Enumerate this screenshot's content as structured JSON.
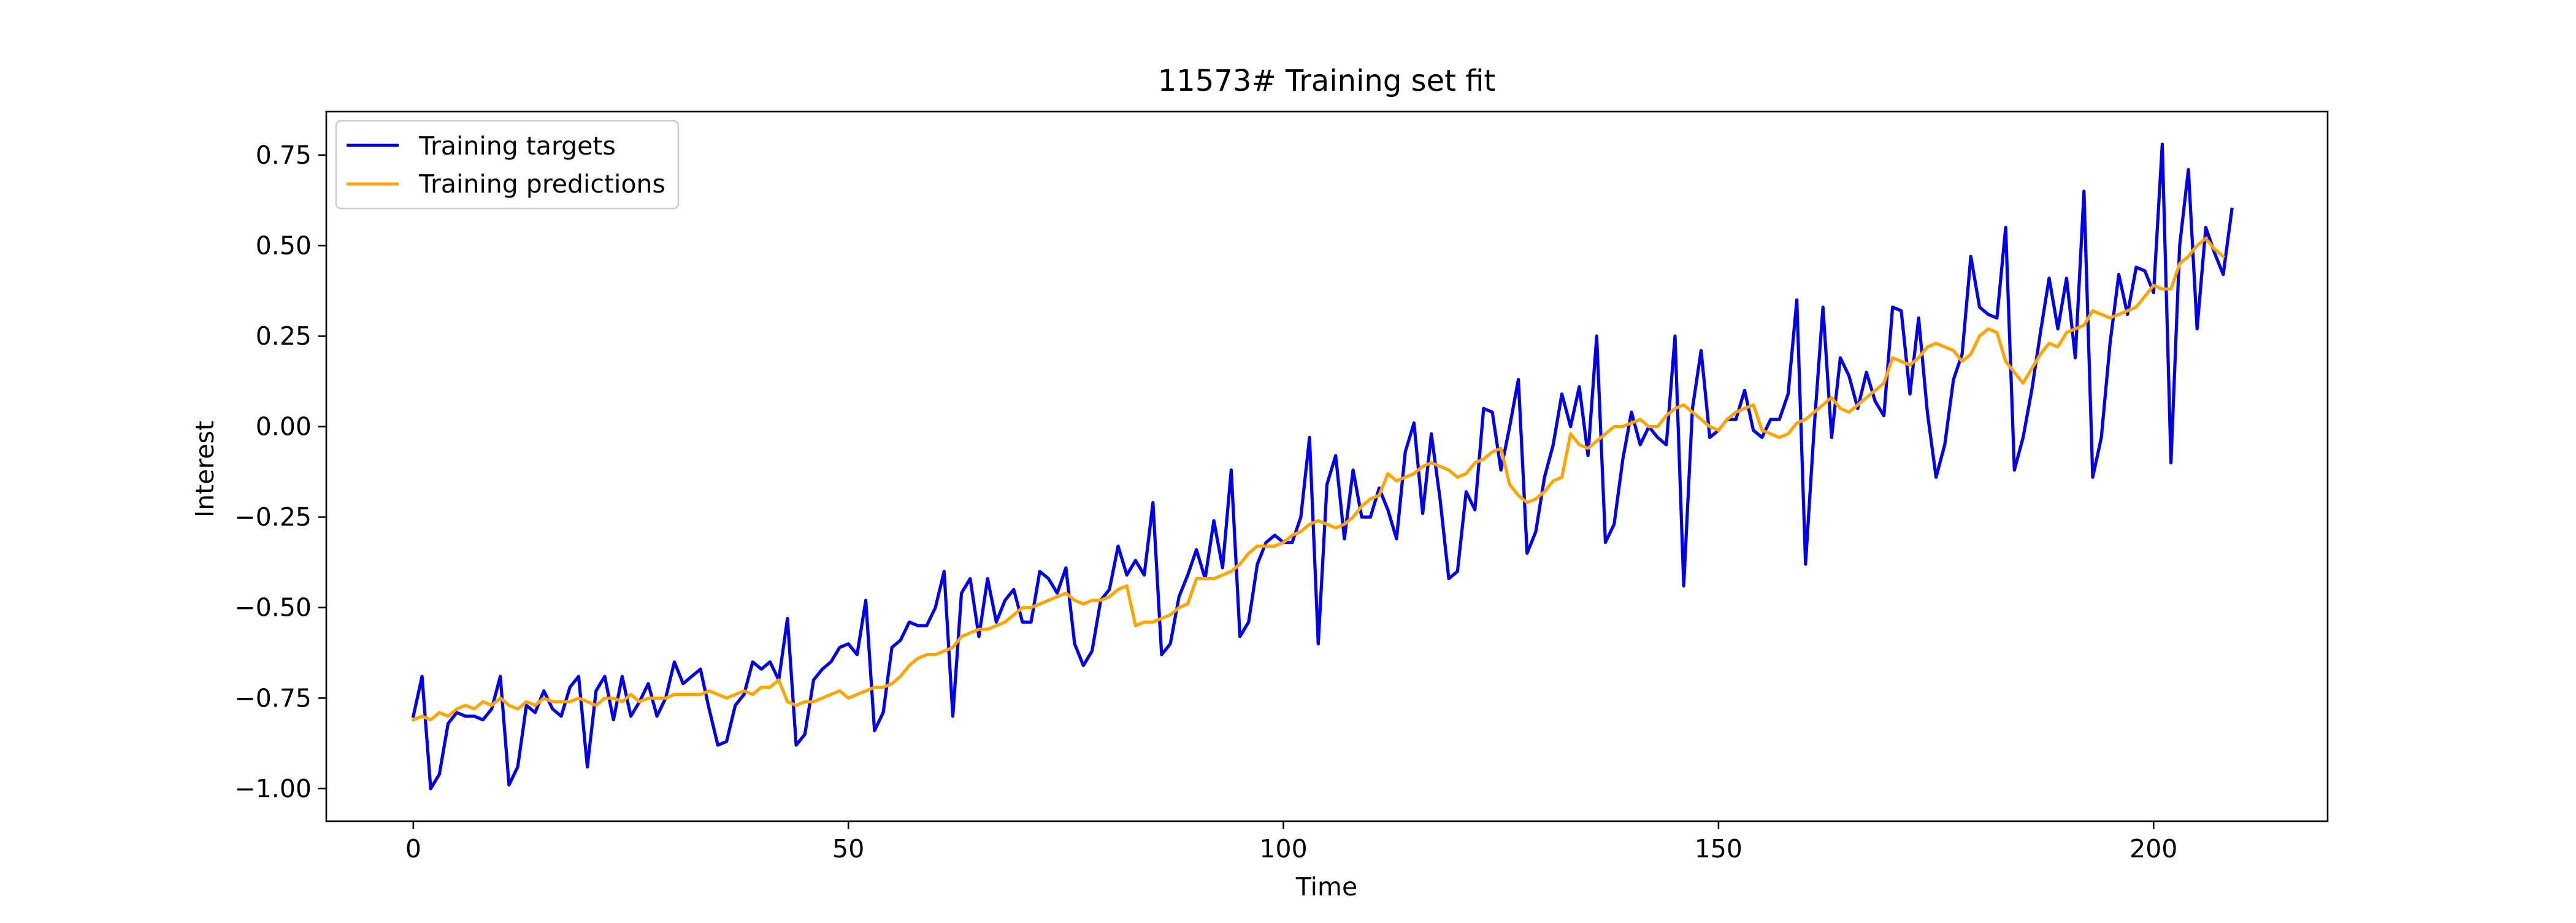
{
  "chart_data": {
    "type": "line",
    "title": "11573# Training set fit",
    "xlabel": "Time",
    "ylabel": "Interest",
    "xlim": [
      -10,
      220
    ],
    "ylim": [
      -1.09,
      0.87
    ],
    "xticks": [
      0,
      50,
      100,
      150,
      200
    ],
    "yticks": [
      -1.0,
      -0.75,
      -0.5,
      -0.25,
      0.0,
      0.25,
      0.5,
      0.75
    ],
    "ytick_labels": [
      "−1.00",
      "−0.75",
      "−0.50",
      "−0.25",
      "0.00",
      "0.25",
      "0.50",
      "0.75"
    ],
    "grid": false,
    "legend_position": "top-left",
    "x_start": 0,
    "x_step": 1,
    "series": [
      {
        "name": "Training targets",
        "color": "#0000ee",
        "values": [
          -0.8,
          -0.69,
          -1.0,
          -0.96,
          -0.82,
          -0.79,
          -0.8,
          -0.8,
          -0.81,
          -0.78,
          -0.69,
          -0.99,
          -0.94,
          -0.77,
          -0.79,
          -0.73,
          -0.78,
          -0.8,
          -0.72,
          -0.69,
          -0.94,
          -0.73,
          -0.69,
          -0.81,
          -0.69,
          -0.8,
          -0.76,
          -0.71,
          -0.8,
          -0.75,
          -0.65,
          -0.71,
          -0.69,
          -0.67,
          -0.78,
          -0.88,
          -0.87,
          -0.77,
          -0.74,
          -0.65,
          -0.67,
          -0.65,
          -0.7,
          -0.53,
          -0.88,
          -0.85,
          -0.7,
          -0.67,
          -0.65,
          -0.61,
          -0.6,
          -0.63,
          -0.48,
          -0.84,
          -0.79,
          -0.61,
          -0.59,
          -0.54,
          -0.55,
          -0.55,
          -0.5,
          -0.4,
          -0.8,
          -0.46,
          -0.42,
          -0.58,
          -0.42,
          -0.54,
          -0.48,
          -0.45,
          -0.54,
          -0.54,
          -0.4,
          -0.42,
          -0.46,
          -0.39,
          -0.6,
          -0.66,
          -0.62,
          -0.48,
          -0.45,
          -0.33,
          -0.41,
          -0.37,
          -0.41,
          -0.21,
          -0.63,
          -0.6,
          -0.47,
          -0.41,
          -0.34,
          -0.42,
          -0.26,
          -0.39,
          -0.12,
          -0.58,
          -0.54,
          -0.38,
          -0.32,
          -0.3,
          -0.32,
          -0.32,
          -0.25,
          -0.03,
          -0.6,
          -0.16,
          -0.08,
          -0.31,
          -0.12,
          -0.25,
          -0.25,
          -0.17,
          -0.23,
          -0.31,
          -0.07,
          0.01,
          -0.24,
          -0.02,
          -0.2,
          -0.42,
          -0.4,
          -0.18,
          -0.23,
          0.05,
          0.04,
          -0.12,
          0.0,
          0.13,
          -0.35,
          -0.29,
          -0.14,
          -0.05,
          0.09,
          0.0,
          0.11,
          -0.08,
          0.25,
          -0.32,
          -0.27,
          -0.09,
          0.04,
          -0.05,
          0.0,
          -0.03,
          -0.05,
          0.25,
          -0.44,
          0.05,
          0.21,
          -0.03,
          -0.01,
          0.02,
          0.02,
          0.1,
          -0.01,
          -0.03,
          0.02,
          0.02,
          0.09,
          0.35,
          -0.38,
          0.0,
          0.33,
          -0.03,
          0.19,
          0.14,
          0.05,
          0.15,
          0.07,
          0.03,
          0.33,
          0.32,
          0.09,
          0.3,
          0.04,
          -0.14,
          -0.05,
          0.13,
          0.2,
          0.47,
          0.33,
          0.31,
          0.3,
          0.55,
          -0.12,
          -0.03,
          0.1,
          0.26,
          0.41,
          0.27,
          0.41,
          0.19,
          0.65,
          -0.14,
          -0.03,
          0.23,
          0.42,
          0.31,
          0.44,
          0.43,
          0.37,
          0.78,
          -0.1,
          0.5,
          0.71,
          0.27,
          0.55,
          0.48,
          0.42,
          0.6
        ]
      },
      {
        "name": "Training predictions",
        "color": "#ffa500",
        "values": [
          -0.81,
          -0.8,
          -0.81,
          -0.79,
          -0.8,
          -0.78,
          -0.77,
          -0.78,
          -0.76,
          -0.77,
          -0.75,
          -0.77,
          -0.78,
          -0.76,
          -0.77,
          -0.75,
          -0.76,
          -0.76,
          -0.76,
          -0.75,
          -0.76,
          -0.77,
          -0.75,
          -0.75,
          -0.76,
          -0.74,
          -0.76,
          -0.75,
          -0.75,
          -0.75,
          -0.74,
          -0.74,
          -0.74,
          -0.74,
          -0.73,
          -0.74,
          -0.75,
          -0.74,
          -0.73,
          -0.74,
          -0.72,
          -0.72,
          -0.7,
          -0.76,
          -0.77,
          -0.76,
          -0.76,
          -0.75,
          -0.74,
          -0.73,
          -0.75,
          -0.74,
          -0.73,
          -0.72,
          -0.72,
          -0.71,
          -0.69,
          -0.66,
          -0.64,
          -0.63,
          -0.63,
          -0.62,
          -0.61,
          -0.58,
          -0.57,
          -0.56,
          -0.56,
          -0.55,
          -0.54,
          -0.52,
          -0.5,
          -0.5,
          -0.49,
          -0.48,
          -0.47,
          -0.46,
          -0.48,
          -0.49,
          -0.48,
          -0.48,
          -0.47,
          -0.45,
          -0.44,
          -0.55,
          -0.54,
          -0.54,
          -0.53,
          -0.52,
          -0.5,
          -0.49,
          -0.42,
          -0.42,
          -0.42,
          -0.41,
          -0.4,
          -0.38,
          -0.35,
          -0.33,
          -0.33,
          -0.33,
          -0.32,
          -0.3,
          -0.29,
          -0.27,
          -0.26,
          -0.27,
          -0.28,
          -0.27,
          -0.25,
          -0.22,
          -0.2,
          -0.19,
          -0.13,
          -0.15,
          -0.14,
          -0.13,
          -0.11,
          -0.1,
          -0.11,
          -0.12,
          -0.14,
          -0.13,
          -0.1,
          -0.09,
          -0.07,
          -0.06,
          -0.16,
          -0.19,
          -0.21,
          -0.2,
          -0.18,
          -0.15,
          -0.14,
          -0.02,
          -0.05,
          -0.06,
          -0.04,
          -0.02,
          0.0,
          0.0,
          0.01,
          0.02,
          0.0,
          0.0,
          0.03,
          0.05,
          0.06,
          0.04,
          0.02,
          0.0,
          -0.01,
          0.02,
          0.04,
          0.05,
          0.06,
          -0.01,
          -0.02,
          -0.03,
          -0.02,
          0.01,
          0.02,
          0.04,
          0.06,
          0.08,
          0.05,
          0.04,
          0.06,
          0.08,
          0.1,
          0.12,
          0.19,
          0.18,
          0.17,
          0.19,
          0.22,
          0.23,
          0.22,
          0.21,
          0.18,
          0.2,
          0.25,
          0.27,
          0.26,
          0.18,
          0.15,
          0.12,
          0.16,
          0.2,
          0.23,
          0.22,
          0.26,
          0.27,
          0.28,
          0.32,
          0.31,
          0.3,
          0.31,
          0.32,
          0.33,
          0.36,
          0.39,
          0.38,
          0.38,
          0.45,
          0.47,
          0.5,
          0.52,
          0.49,
          0.47
        ]
      }
    ]
  }
}
